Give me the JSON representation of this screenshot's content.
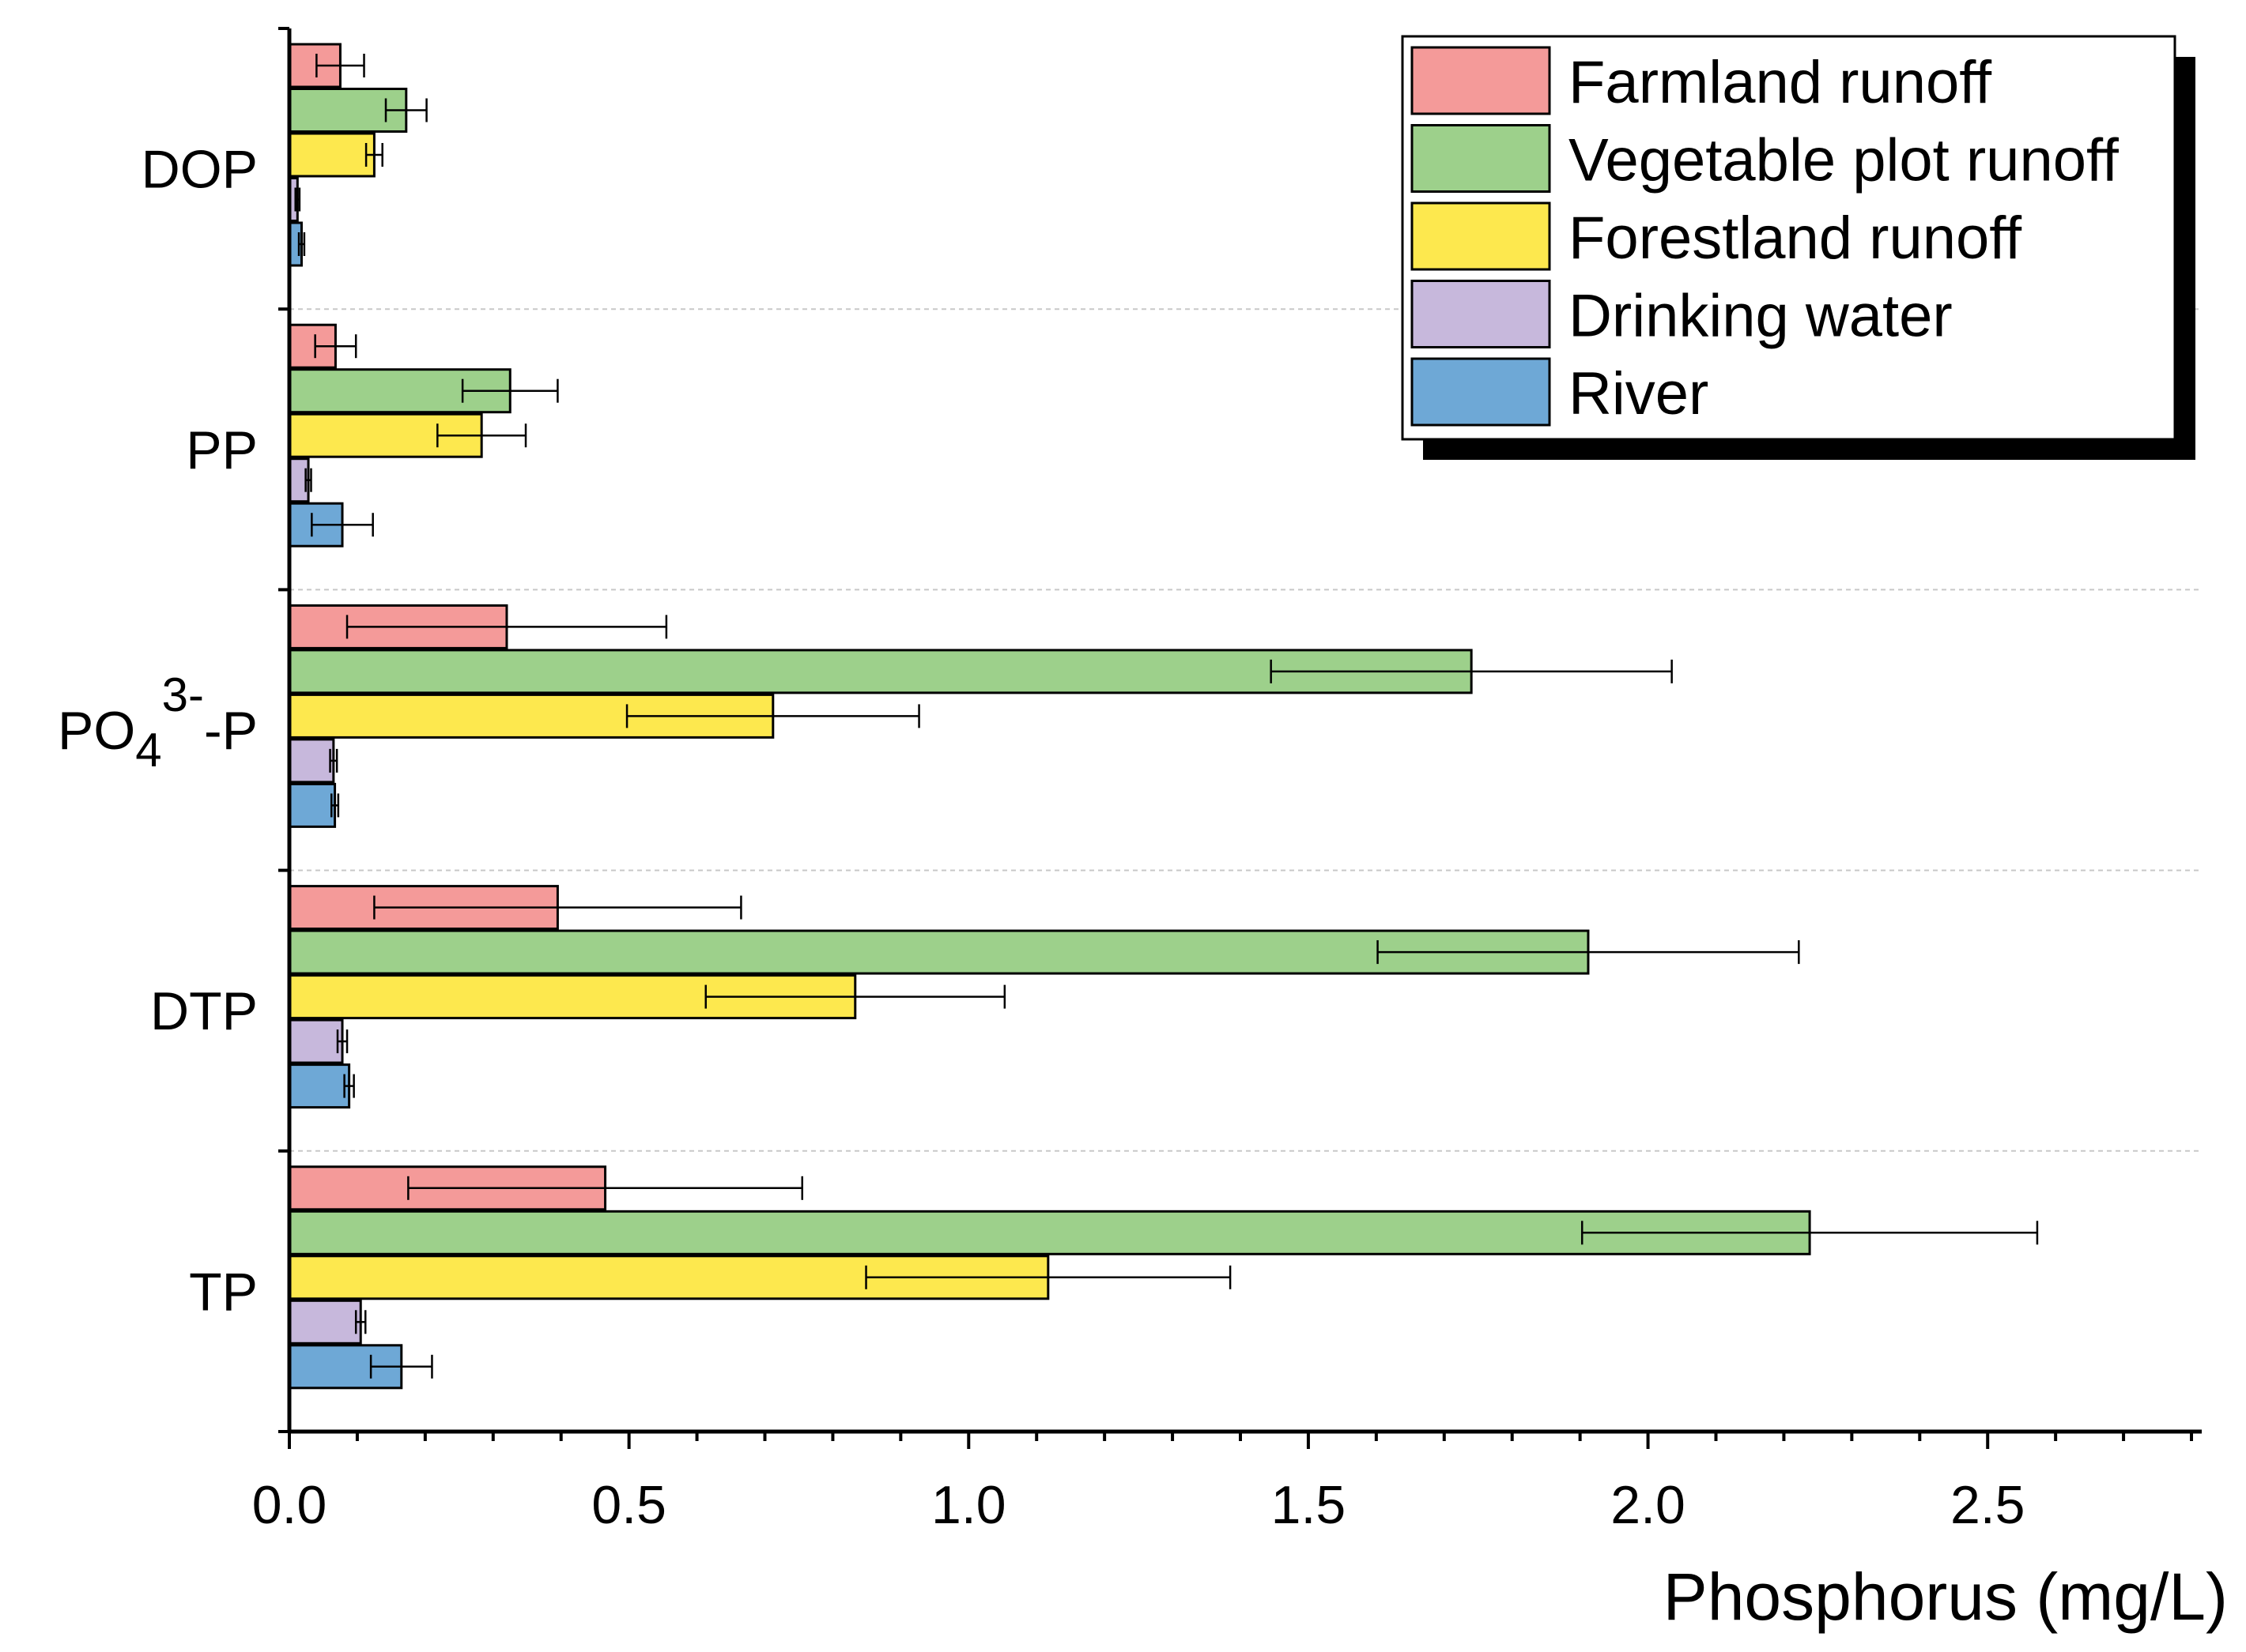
{
  "chart_data": {
    "type": "bar",
    "orientation": "horizontal",
    "title": "",
    "xlabel": "Phosphorus  (mg/L)",
    "ylabel": "",
    "xlim": [
      0,
      2.8
    ],
    "x_ticks": [
      "0.0",
      "0.5",
      "1.0",
      "1.5",
      "2.0",
      "2.5"
    ],
    "categories": [
      {
        "name": "DOP"
      },
      {
        "name": "PP"
      },
      {
        "name": "PO4 3- -P",
        "base": "PO",
        "sub": "4",
        "sup": "3-",
        "suffix": "-P"
      },
      {
        "name": "DTP"
      },
      {
        "name": "TP"
      }
    ],
    "series": [
      {
        "name": "Farmland runoff",
        "color": "#f49a99",
        "values": [
          0.075,
          0.068,
          0.32,
          0.395,
          0.465
        ],
        "errors": [
          0.035,
          0.03,
          0.235,
          0.27,
          0.29
        ]
      },
      {
        "name": "Vegetable plot runoff",
        "color": "#9dd08b",
        "values": [
          0.172,
          0.325,
          1.74,
          1.912,
          2.238
        ],
        "errors": [
          0.03,
          0.07,
          0.295,
          0.31,
          0.335
        ]
      },
      {
        "name": "Forestland runoff",
        "color": "#fde84e",
        "values": [
          0.125,
          0.283,
          0.712,
          0.833,
          1.117
        ],
        "errors": [
          0.012,
          0.065,
          0.215,
          0.22,
          0.268
        ]
      },
      {
        "name": "Drinking water",
        "color": "#c7b8dc",
        "values": [
          0.012,
          0.028,
          0.065,
          0.078,
          0.105
        ],
        "errors": [
          0.003,
          0.004,
          0.005,
          0.007,
          0.007
        ]
      },
      {
        "name": "River",
        "color": "#6ea8d6",
        "values": [
          0.018,
          0.078,
          0.067,
          0.088,
          0.165
        ],
        "errors": [
          0.004,
          0.045,
          0.005,
          0.007,
          0.045
        ]
      }
    ],
    "grid": "dashed horizontal separators between categories",
    "legend_position": "top-right"
  }
}
